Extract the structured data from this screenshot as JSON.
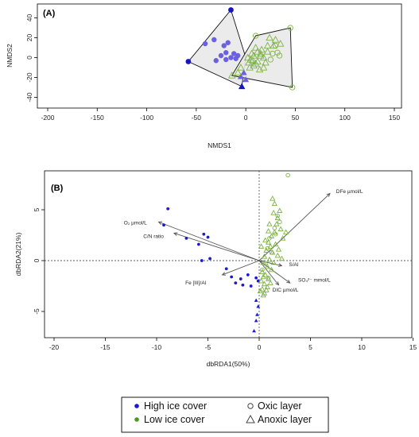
{
  "chart_data": [
    {
      "type": "scatter",
      "panel_label": "(A)",
      "xlabel": "NMDS1",
      "ylabel": "NMDS2",
      "xlim": [
        -200,
        160
      ],
      "ylim": [
        -48,
        52
      ],
      "xticks": [
        "-200",
        "-150",
        "-100",
        "-50",
        "0",
        "50",
        "100",
        "150"
      ],
      "yticks": [
        "-40",
        "-20",
        "0",
        "20",
        "40"
      ],
      "hulls": [
        {
          "name": "High ice cover",
          "color": "#1f1fcf",
          "vertices": [
            [
              -15,
              48
            ],
            [
              -58,
              -4
            ],
            [
              -4,
              -29
            ],
            [
              0,
              0
            ]
          ]
        },
        {
          "name": "Low ice cover",
          "color": "#4a8a1e",
          "vertices": [
            [
              10,
              22
            ],
            [
              45,
              30
            ],
            [
              47,
              -30
            ],
            [
              -14,
              -18
            ]
          ]
        }
      ],
      "series": [
        {
          "name": "High ice cover / Oxic layer",
          "marker": "filled-circle",
          "color": "#6a60e0",
          "points": [
            [
              -41,
              14
            ],
            [
              -32,
              18
            ],
            [
              -22,
              12
            ],
            [
              -18,
              15
            ],
            [
              -25,
              2
            ],
            [
              -20,
              5
            ],
            [
              -15,
              0
            ],
            [
              -12,
              4
            ],
            [
              -30,
              -3
            ],
            [
              -20,
              -2
            ],
            [
              -10,
              -1
            ],
            [
              -8,
              2
            ]
          ]
        },
        {
          "name": "High ice cover / Anoxic layer",
          "marker": "filled-triangle",
          "color": "#6a60e0",
          "points": [
            [
              -2,
              -15
            ],
            [
              -5,
              -19
            ],
            [
              0,
              -22
            ]
          ]
        },
        {
          "name": "High ice cover / hull vertices",
          "marker": "filled-circle",
          "color": "#1515c8",
          "points": [
            [
              -15,
              48
            ],
            [
              -58,
              -4
            ]
          ]
        },
        {
          "name": "High ice cover / hull vertex",
          "marker": "filled-triangle",
          "color": "#1515c8",
          "points": [
            [
              -4,
              -29
            ]
          ]
        },
        {
          "name": "Low ice cover / Oxic layer",
          "marker": "open-circle",
          "color": "#7cb342",
          "points": [
            [
              10,
              22
            ],
            [
              45,
              30
            ],
            [
              47,
              -30
            ],
            [
              32,
              5
            ],
            [
              30,
              12
            ],
            [
              25,
              -2
            ],
            [
              27,
              4
            ],
            [
              34,
              2
            ]
          ]
        },
        {
          "name": "Low ice cover / Anoxic layer",
          "marker": "open-triangle",
          "color": "#7cb342",
          "points": [
            [
              24,
              20
            ],
            [
              30,
              18
            ],
            [
              28,
              12
            ],
            [
              22,
              12
            ],
            [
              35,
              14
            ],
            [
              10,
              10
            ],
            [
              12,
              6
            ],
            [
              15,
              4
            ],
            [
              18,
              0
            ],
            [
              8,
              2
            ],
            [
              5,
              -2
            ],
            [
              3,
              -5
            ],
            [
              8,
              -8
            ],
            [
              12,
              -4
            ],
            [
              15,
              2
            ],
            [
              2,
              0
            ],
            [
              -5,
              -10
            ],
            [
              -8,
              -15
            ],
            [
              -14,
              -18
            ],
            [
              18,
              -10
            ],
            [
              20,
              -5
            ],
            [
              6,
              4
            ],
            [
              4,
              -10
            ],
            [
              14,
              -12
            ],
            [
              10,
              -6
            ],
            [
              22,
              6
            ],
            [
              7,
              -3
            ],
            [
              16,
              8
            ]
          ]
        }
      ]
    },
    {
      "type": "scatter",
      "panel_label": "(B)",
      "xlabel": "dbRDA1(50%)",
      "ylabel": "dbRDA2(21%)",
      "xlim": [
        -20.8,
        15
      ],
      "ylim": [
        -7.8,
        8.8
      ],
      "xticks": [
        "-20",
        "-15",
        "-10",
        "-5",
        "0",
        "5",
        "10",
        "15"
      ],
      "yticks": [
        "-5",
        "0",
        "5"
      ],
      "vectors": [
        {
          "label": "DFe µmol/L",
          "end": [
            6.9,
            6.6
          ],
          "label_at": [
            7.5,
            6.8
          ]
        },
        {
          "label": "O₂ µmol/L",
          "end": [
            -9.8,
            3.8
          ],
          "label_at": [
            -13.2,
            3.7
          ]
        },
        {
          "label": "C/N ratio",
          "end": [
            -8.3,
            2.7
          ],
          "label_at": [
            -11.3,
            2.4
          ]
        },
        {
          "label": "S/Al",
          "end": [
            2.2,
            -0.5
          ],
          "label_at": [
            2.9,
            -0.4
          ]
        },
        {
          "label": "SO₄²⁻ mmol/L",
          "end": [
            3.0,
            -2.2
          ],
          "label_at": [
            3.8,
            -1.9
          ]
        },
        {
          "label": "DIC µmol/L",
          "end": [
            1.9,
            -2.4
          ],
          "label_at": [
            1.3,
            -2.9
          ]
        },
        {
          "label": "Fe [III]/Al",
          "end": [
            -3.6,
            -1.4
          ],
          "label_at": [
            -7.2,
            -2.2
          ]
        }
      ],
      "series": [
        {
          "name": "High ice cover / Oxic layer",
          "marker": "filled-circle",
          "color": "#1a1acf",
          "points": [
            [
              -8.9,
              5.1
            ],
            [
              -9.3,
              3.5
            ],
            [
              -7.1,
              2.2
            ],
            [
              -5.4,
              2.6
            ],
            [
              -5.0,
              2.3
            ],
            [
              -5.9,
              1.6
            ],
            [
              -4.8,
              0.2
            ],
            [
              -5.6,
              0.0
            ],
            [
              -3.2,
              -0.8
            ],
            [
              -2.7,
              -1.6
            ],
            [
              -2.3,
              -2.2
            ],
            [
              -1.6,
              -2.4
            ],
            [
              -1.1,
              -1.4
            ],
            [
              -0.3,
              -1.7
            ],
            [
              -0.8,
              -2.5
            ],
            [
              -0.1,
              -2.0
            ],
            [
              -1.8,
              -1.8
            ]
          ]
        },
        {
          "name": "High ice cover / Anoxic layer",
          "marker": "filled-triangle",
          "color": "#1a1acf",
          "points": [
            [
              -0.3,
              -3.9
            ],
            [
              -0.1,
              -4.5
            ],
            [
              -0.2,
              -5.3
            ],
            [
              -0.3,
              -5.9
            ],
            [
              -0.5,
              -6.9
            ]
          ]
        },
        {
          "name": "Low ice cover / Oxic layer",
          "marker": "open-circle",
          "color": "#7cb342",
          "points": [
            [
              2.8,
              8.4
            ],
            [
              1.8,
              4.4
            ],
            [
              1.5,
              3.2
            ],
            [
              1.0,
              2.2
            ],
            [
              0.8,
              1.2
            ],
            [
              1.2,
              0.8
            ],
            [
              0.6,
              -0.3
            ],
            [
              0.3,
              -0.9
            ],
            [
              0.9,
              -1.7
            ],
            [
              1.6,
              2.6
            ],
            [
              2.0,
              3.8
            ]
          ]
        },
        {
          "name": "Low ice cover / Anoxic layer",
          "marker": "open-triangle",
          "color": "#7cb342",
          "points": [
            [
              1.4,
              4.7
            ],
            [
              1.8,
              4.2
            ],
            [
              2.1,
              3.1
            ],
            [
              1.5,
              2.8
            ],
            [
              1.2,
              2.4
            ],
            [
              2.3,
              2.2
            ],
            [
              0.9,
              1.8
            ],
            [
              1.6,
              1.6
            ],
            [
              1.1,
              1.4
            ],
            [
              0.7,
              1.0
            ],
            [
              1.3,
              0.8
            ],
            [
              1.8,
              0.5
            ],
            [
              0.5,
              0.4
            ],
            [
              1.0,
              0.1
            ],
            [
              0.4,
              -0.2
            ],
            [
              0.8,
              -0.6
            ],
            [
              1.2,
              -0.9
            ],
            [
              0.3,
              -1.1
            ],
            [
              0.6,
              -1.4
            ],
            [
              0.9,
              -1.8
            ],
            [
              0.2,
              -2.0
            ],
            [
              0.5,
              -2.3
            ],
            [
              0.8,
              -2.6
            ],
            [
              0.3,
              -2.8
            ],
            [
              0.1,
              -3.0
            ],
            [
              0.5,
              -3.2
            ],
            [
              0.4,
              -3.4
            ],
            [
              1.5,
              5.6
            ],
            [
              1.3,
              6.1
            ],
            [
              2.0,
              4.9
            ],
            [
              1.7,
              3.6
            ],
            [
              0.9,
              2.9
            ],
            [
              0.6,
              2.0
            ],
            [
              1.9,
              1.1
            ],
            [
              1.4,
              -0.2
            ],
            [
              0.4,
              -1.6
            ],
            [
              1.1,
              -2.2
            ],
            [
              0.7,
              -2.9
            ],
            [
              2.2,
              0.2
            ],
            [
              1.0,
              3.6
            ],
            [
              0.2,
              1.4
            ],
            [
              2.6,
              2.8
            ]
          ]
        }
      ]
    }
  ],
  "legend": {
    "items": [
      {
        "label": "High ice cover",
        "marker": "filled-circle",
        "color": "#1a1acf"
      },
      {
        "label": "Oxic layer",
        "marker": "open-circle",
        "color": "#444444"
      },
      {
        "label": "Low ice cover",
        "marker": "filled-circle",
        "color": "#4a9a1e"
      },
      {
        "label": "Anoxic layer",
        "marker": "open-triangle",
        "color": "#444444"
      }
    ]
  }
}
